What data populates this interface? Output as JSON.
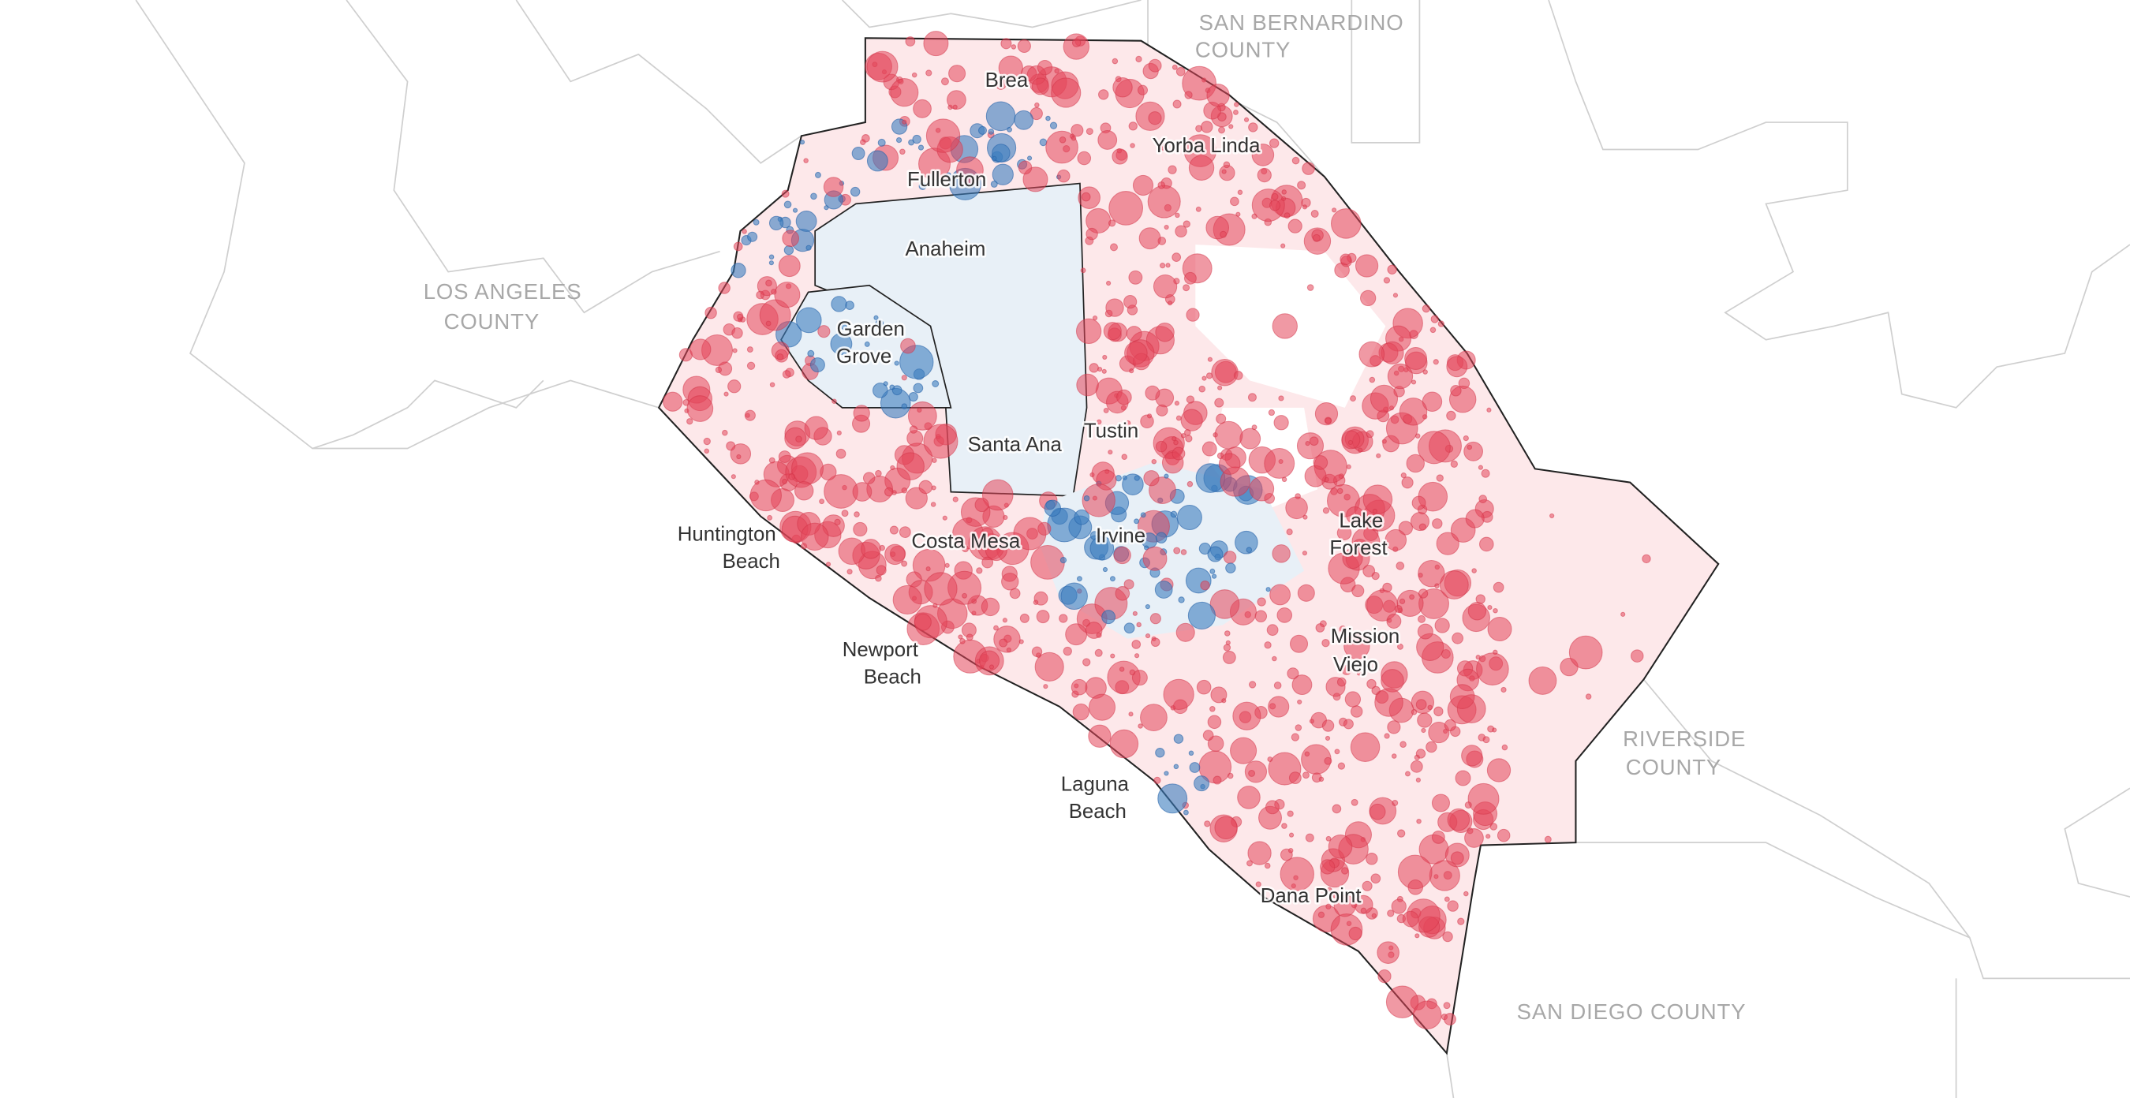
{
  "counties": [
    {
      "lines": [
        "LOS ANGELES",
        "COUNTY"
      ]
    },
    {
      "lines": [
        "SAN BERNARDINO",
        "COUNTY"
      ]
    },
    {
      "lines": [
        "RIVERSIDE",
        "COUNTY"
      ]
    },
    {
      "lines": [
        "SAN DIEGO COUNTY"
      ]
    }
  ],
  "cities": [
    {
      "lines": [
        "Brea"
      ]
    },
    {
      "lines": [
        "Yorba Linda"
      ]
    },
    {
      "lines": [
        "Fullerton"
      ]
    },
    {
      "lines": [
        "Anaheim"
      ]
    },
    {
      "lines": [
        "Garden",
        "Grove"
      ]
    },
    {
      "lines": [
        "Santa Ana"
      ]
    },
    {
      "lines": [
        "Tustin"
      ]
    },
    {
      "lines": [
        "Huntington",
        "Beach"
      ]
    },
    {
      "lines": [
        "Costa Mesa"
      ]
    },
    {
      "lines": [
        "Irvine"
      ]
    },
    {
      "lines": [
        "Lake",
        "Forest"
      ]
    },
    {
      "lines": [
        "Mission",
        "Viejo"
      ]
    },
    {
      "lines": [
        "Newport",
        "Beach"
      ]
    },
    {
      "lines": [
        "Laguna",
        "Beach"
      ]
    },
    {
      "lines": [
        "Dana Point"
      ]
    }
  ]
}
